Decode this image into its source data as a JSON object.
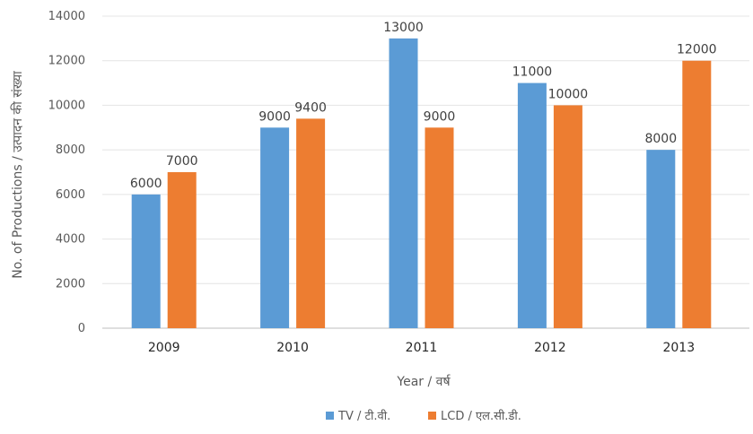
{
  "chart_data": {
    "type": "bar",
    "categories": [
      "2009",
      "2010",
      "2011",
      "2012",
      "2013"
    ],
    "series": [
      {
        "name": "TV / टी.वी.",
        "values": [
          6000,
          9000,
          13000,
          11000,
          8000
        ],
        "color": "#5b9bd5"
      },
      {
        "name": "LCD / एल.सी.डी.",
        "values": [
          7000,
          9400,
          9000,
          10000,
          12000
        ],
        "color": "#ed7d31"
      }
    ],
    "xlabel": "Year / वर्ष",
    "ylabel": "No. of Productions / उत्पादन  की  संख्या",
    "ylim": [
      0,
      14000
    ],
    "yticks": [
      0,
      2000,
      4000,
      6000,
      8000,
      10000,
      12000,
      14000
    ],
    "grid": true,
    "legend": "bottom"
  }
}
